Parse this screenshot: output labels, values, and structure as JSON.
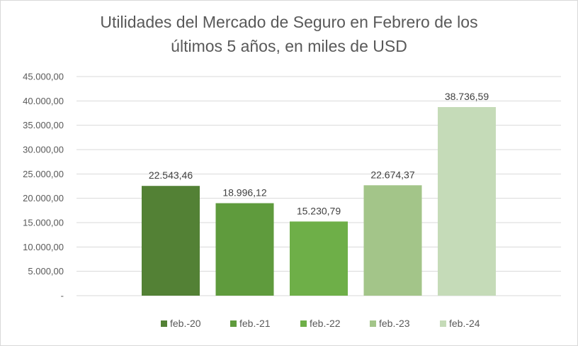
{
  "chart_data": {
    "type": "bar",
    "title_line1": "Utilidades del Mercado de Seguro en Febrero de los",
    "title_line2": "últimos 5 años, en miles de USD",
    "categories": [
      "feb.-20",
      "feb.-21",
      "feb.-22",
      "feb.-23",
      "feb.-24"
    ],
    "values": [
      22543.46,
      18996.12,
      15230.79,
      22674.37,
      38736.59
    ],
    "value_labels": [
      "22.543,46",
      "18.996,12",
      "15.230,79",
      "22.674,37",
      "38.736,59"
    ],
    "colors": [
      "#538135",
      "#5f9b3d",
      "#6eaf48",
      "#a3c589",
      "#c5dbb8"
    ],
    "ylim": [
      0,
      45000
    ],
    "y_ticks": [
      0,
      5000,
      10000,
      15000,
      20000,
      25000,
      30000,
      35000,
      40000,
      45000
    ],
    "y_tick_labels": [
      "-",
      "5.000,00",
      "10.000,00",
      "15.000,00",
      "20.000,00",
      "25.000,00",
      "30.000,00",
      "35.000,00",
      "40.000,00",
      "45.000,00"
    ],
    "grid": true,
    "legend_position": "bottom"
  }
}
